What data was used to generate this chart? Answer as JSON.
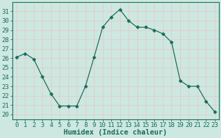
{
  "x": [
    0,
    1,
    2,
    3,
    4,
    5,
    6,
    7,
    8,
    9,
    10,
    11,
    12,
    13,
    14,
    15,
    16,
    17,
    18,
    19,
    20,
    21,
    22,
    23
  ],
  "y": [
    26.1,
    26.5,
    25.9,
    24.0,
    22.2,
    20.9,
    20.9,
    20.9,
    23.0,
    26.1,
    29.3,
    30.4,
    31.2,
    30.0,
    29.3,
    29.3,
    29.0,
    28.6,
    27.7,
    23.6,
    23.0,
    23.0,
    21.4,
    20.3
  ],
  "line_color": "#1a6b5a",
  "marker": "D",
  "marker_size": 2.5,
  "bg_color": "#cce8e0",
  "grid_color": "#e8c8c8",
  "xlabel": "Humidex (Indice chaleur)",
  "ylabel_ticks": [
    20,
    21,
    22,
    23,
    24,
    25,
    26,
    27,
    28,
    29,
    30,
    31
  ],
  "ylim": [
    19.5,
    32.0
  ],
  "xlim": [
    -0.5,
    23.5
  ],
  "xtick_labels": [
    "0",
    "1",
    "2",
    "3",
    "4",
    "5",
    "6",
    "7",
    "8",
    "9",
    "10",
    "11",
    "12",
    "13",
    "14",
    "15",
    "16",
    "17",
    "18",
    "19",
    "20",
    "21",
    "22",
    "23"
  ],
  "title_fontsize": 9,
  "label_fontsize": 7.5,
  "tick_fontsize": 6.5
}
